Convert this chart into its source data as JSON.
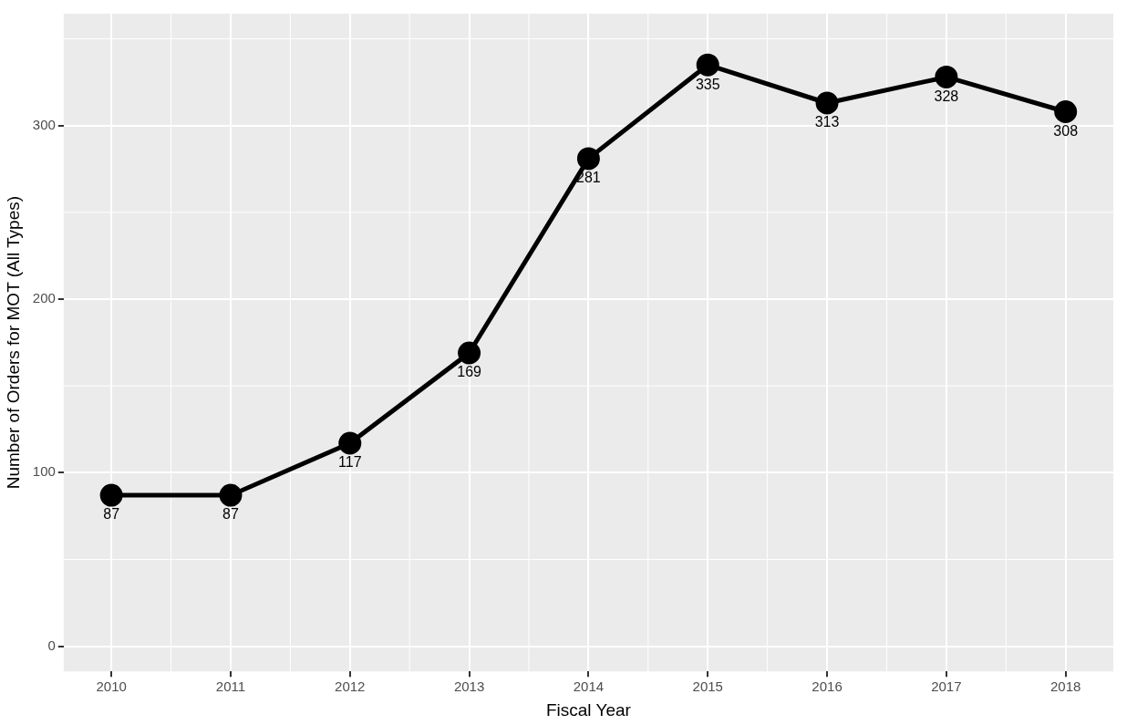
{
  "chart_data": {
    "type": "line",
    "xlabel": "Fiscal Year",
    "ylabel": "Number of Orders for MOT (All Types)",
    "x": [
      2010,
      2011,
      2012,
      2013,
      2014,
      2015,
      2016,
      2017,
      2018
    ],
    "series": [
      {
        "color": "#000000",
        "values": [
          87,
          87,
          117,
          169,
          281,
          335,
          313,
          328,
          308
        ]
      }
    ],
    "xlim": [
      2009.6,
      2018.4
    ],
    "xticks": [
      2010,
      2011,
      2012,
      2013,
      2014,
      2015,
      2016,
      2017,
      2018
    ],
    "ylim": [
      -14.5,
      364.5
    ],
    "yticks": [
      0,
      100,
      200,
      300
    ],
    "grid": true,
    "marker": "circle",
    "line_style": "solid",
    "data_labels": true
  }
}
